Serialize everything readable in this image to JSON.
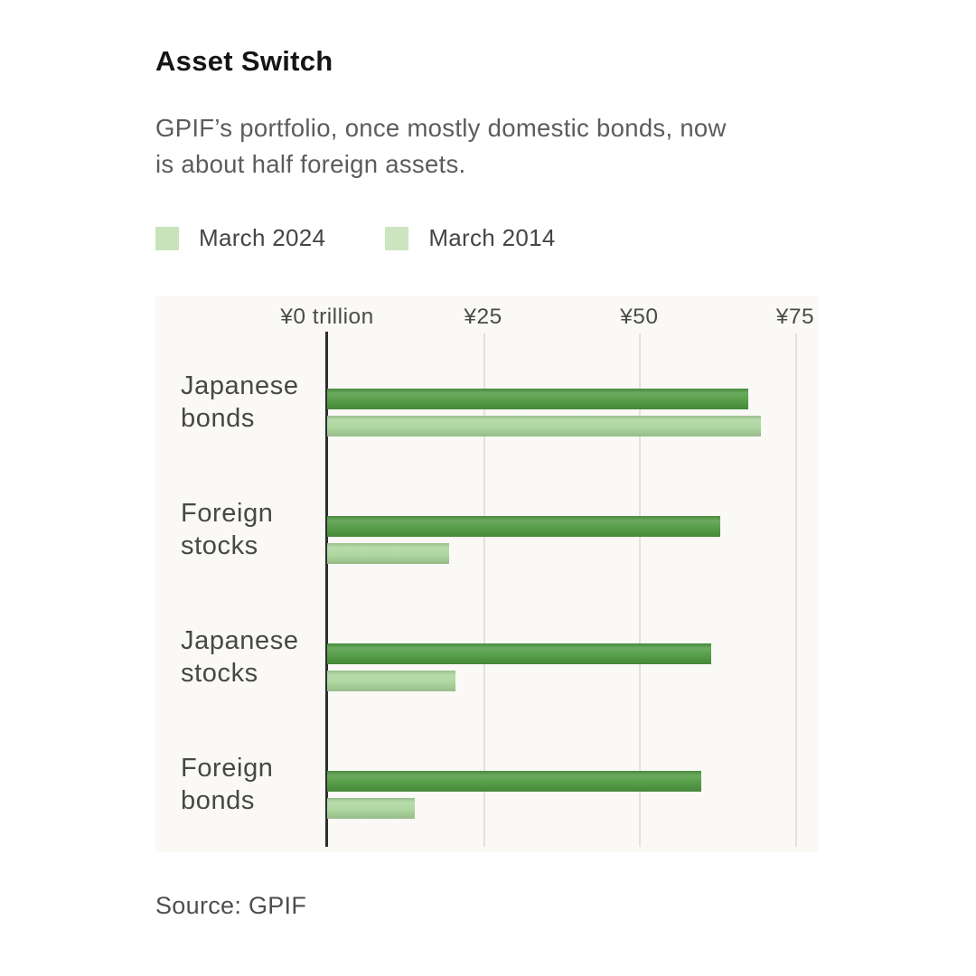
{
  "header": {
    "title": "Asset Switch",
    "subtitle": "GPIF’s portfolio, once mostly domestic bonds, now\nis about half foreign assets."
  },
  "legend": {
    "items": [
      {
        "label": "March 2024",
        "swatch_color": "#c8e3ba"
      },
      {
        "label": "March 2014",
        "swatch_color": "#cde5c1"
      }
    ]
  },
  "chart_data": {
    "type": "bar",
    "orientation": "horizontal",
    "title": "Asset Switch",
    "unit": "yen trillion",
    "categories": [
      "Japanese bonds",
      "Foreign stocks",
      "Japanese stocks",
      "Foreign bonds"
    ],
    "series": [
      {
        "name": "March 2024",
        "color": "#4f9a41",
        "values": [
          67.5,
          63,
          61.5,
          60
        ]
      },
      {
        "name": "March 2014",
        "color": "#abd59c",
        "values": [
          69.5,
          19.5,
          20.5,
          14
        ]
      }
    ],
    "x_ticks": [
      {
        "value": 0,
        "label": "¥0 trillion"
      },
      {
        "value": 25,
        "label": "¥25"
      },
      {
        "value": 50,
        "label": "¥50"
      },
      {
        "value": 75,
        "label": "¥75"
      }
    ],
    "xlim": [
      0,
      78.2
    ],
    "grid": true,
    "legend_position": "top",
    "plot_background": "#faf9f6",
    "gridline_color": "#e2e1dd",
    "axis_line_color": "#2e2e2e"
  },
  "footer": {
    "source": "Source: GPIF"
  }
}
